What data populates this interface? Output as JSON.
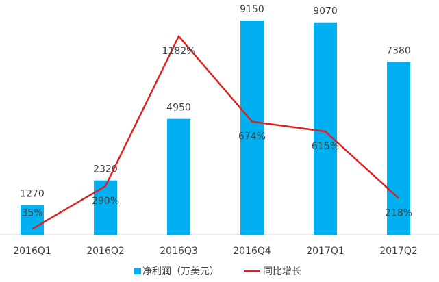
{
  "chart_data": {
    "type": "bar-line",
    "categories": [
      "2016Q1",
      "2016Q2",
      "2016Q3",
      "2016Q4",
      "2017Q1",
      "2017Q2"
    ],
    "series": [
      {
        "name": "净利润（万美元）",
        "type": "bar",
        "color": "#00b0f0",
        "values": [
          1270,
          2320,
          4950,
          9150,
          9070,
          7380
        ]
      },
      {
        "name": "同比增长",
        "type": "line",
        "axis": "y2",
        "color": "#e0201e",
        "values": [
          35,
          290,
          1182,
          674,
          615,
          218
        ],
        "value_labels": [
          "35%",
          "290%",
          "1182%",
          "674%",
          "615%",
          "218%"
        ]
      }
    ],
    "legend": "bottom"
  }
}
